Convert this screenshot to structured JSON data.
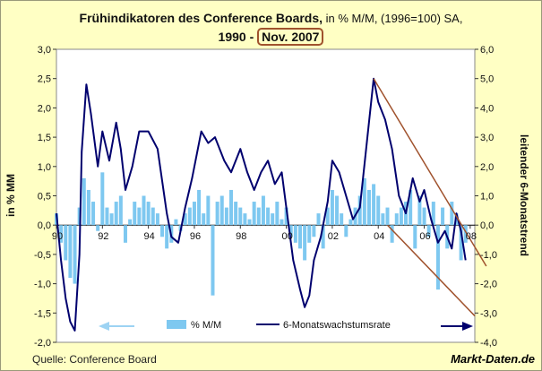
{
  "title": {
    "bold_part": "Frühindikatoren des Conference Boards,",
    "rest_part": " in % M/M, (1996=100) SA,",
    "line2_a": "1990 - ",
    "line2_highlight": "Nov. 2007"
  },
  "source": "Quelle: Conference Board",
  "brand": "Markt-Daten.de",
  "colors": {
    "bars": "#7ec8f0",
    "line": "#00006e",
    "trend": "#a0522d",
    "plot_bg": "#ffffff"
  },
  "chart_data": {
    "type": "bar",
    "xlabel": "",
    "ylabel": "in % MM",
    "y2label": "leitender 6-Monatstrend",
    "x_tick_labels": [
      "90",
      "92",
      "94",
      "96",
      "98",
      "00",
      "02",
      "04",
      "06",
      "08"
    ],
    "x_ticks_year": [
      1990,
      1992,
      1994,
      1996,
      1998,
      2000,
      2002,
      2004,
      2006,
      2008
    ],
    "xlim": [
      1990,
      2008.2
    ],
    "ylim": [
      -2.0,
      3.0
    ],
    "y2lim": [
      -4.0,
      6.0
    ],
    "y_tick_labels": [
      "3,0",
      "2,5",
      "2,0",
      "1,5",
      "1,0",
      "0,5",
      "0,0",
      "-0,5",
      "-1,0",
      "-1,5",
      "-2,0"
    ],
    "y2_tick_labels": [
      "6,0",
      "5,0",
      "4,0",
      "3,0",
      "2,0",
      "1,0",
      "0,0",
      "-1,0",
      "-2,0",
      "-3,0",
      "-4,0"
    ],
    "grid": false,
    "legend_position": "bottom",
    "series": [
      {
        "name": "% M/M",
        "axis": "left",
        "kind": "bar",
        "x": [
          1990.0,
          1990.2,
          1990.4,
          1990.6,
          1990.8,
          1991.0,
          1991.2,
          1991.4,
          1991.6,
          1991.8,
          1992.0,
          1992.2,
          1992.4,
          1992.6,
          1992.8,
          1993.0,
          1993.2,
          1993.4,
          1993.6,
          1993.8,
          1994.0,
          1994.2,
          1994.4,
          1994.6,
          1994.8,
          1995.0,
          1995.2,
          1995.4,
          1995.6,
          1995.8,
          1996.0,
          1996.2,
          1996.4,
          1996.6,
          1996.8,
          1997.0,
          1997.2,
          1997.4,
          1997.6,
          1997.8,
          1998.0,
          1998.2,
          1998.4,
          1998.6,
          1998.8,
          1999.0,
          1999.2,
          1999.4,
          1999.6,
          1999.8,
          2000.0,
          2000.2,
          2000.4,
          2000.6,
          2000.8,
          2001.0,
          2001.2,
          2001.4,
          2001.6,
          2001.8,
          2002.0,
          2002.2,
          2002.4,
          2002.6,
          2002.8,
          2003.0,
          2003.2,
          2003.4,
          2003.6,
          2003.8,
          2004.0,
          2004.2,
          2004.4,
          2004.6,
          2004.8,
          2005.0,
          2005.2,
          2005.4,
          2005.6,
          2005.8,
          2006.0,
          2006.2,
          2006.4,
          2006.6,
          2006.8,
          2007.0,
          2007.2,
          2007.4,
          2007.6,
          2007.8
        ],
        "values": [
          0.2,
          -0.3,
          -0.6,
          -0.9,
          -1.0,
          0.3,
          0.8,
          0.6,
          0.4,
          -0.1,
          0.9,
          0.3,
          0.2,
          0.4,
          0.5,
          -0.3,
          0.1,
          0.4,
          0.3,
          0.5,
          0.4,
          0.3,
          0.2,
          -0.2,
          -0.4,
          -0.3,
          0.1,
          -0.1,
          0.2,
          0.3,
          0.4,
          0.6,
          0.2,
          0.5,
          -1.2,
          0.4,
          0.5,
          0.3,
          0.6,
          0.4,
          0.3,
          0.2,
          0.1,
          0.4,
          0.3,
          0.5,
          0.3,
          0.2,
          0.4,
          0.1,
          0.3,
          -0.2,
          -0.3,
          -0.4,
          -0.6,
          -0.3,
          -0.2,
          0.2,
          -0.4,
          0.3,
          0.6,
          0.5,
          0.2,
          -0.2,
          0.1,
          0.3,
          0.5,
          0.8,
          0.6,
          0.7,
          0.5,
          0.2,
          0.3,
          -0.3,
          0.2,
          0.3,
          0.4,
          0.6,
          -0.4,
          0.5,
          0.3,
          -0.2,
          0.4,
          -1.1,
          0.3,
          -0.4,
          0.4,
          0.2,
          -0.6,
          -0.3
        ]
      },
      {
        "name": "6-Monatswachstumsrate",
        "axis": "right",
        "kind": "line",
        "x": [
          1990.0,
          1990.2,
          1990.4,
          1990.6,
          1990.8,
          1991.0,
          1991.1,
          1991.3,
          1991.5,
          1991.8,
          1992.0,
          1992.3,
          1992.6,
          1992.8,
          1993.0,
          1993.3,
          1993.6,
          1994.0,
          1994.4,
          1994.8,
          1995.0,
          1995.3,
          1995.6,
          1995.9,
          1996.3,
          1996.6,
          1996.9,
          1997.3,
          1997.6,
          1998.0,
          1998.3,
          1998.6,
          1998.9,
          1999.2,
          1999.5,
          1999.8,
          2000.0,
          2000.3,
          2000.6,
          2000.8,
          2001.0,
          2001.2,
          2001.5,
          2001.8,
          2002.0,
          2002.3,
          2002.6,
          2002.9,
          2003.2,
          2003.5,
          2003.8,
          2004.0,
          2004.3,
          2004.6,
          2004.9,
          2005.2,
          2005.5,
          2005.8,
          2006.0,
          2006.3,
          2006.6,
          2006.9,
          2007.2,
          2007.4,
          2007.6,
          2007.8
        ],
        "values": [
          0.4,
          -1.2,
          -2.5,
          -3.3,
          -3.6,
          -1.0,
          2.5,
          4.8,
          3.8,
          2.0,
          3.2,
          2.2,
          3.5,
          2.6,
          1.2,
          2.0,
          3.2,
          3.2,
          2.6,
          0.4,
          -0.4,
          -0.6,
          0.6,
          1.6,
          3.2,
          2.8,
          3.0,
          2.2,
          1.8,
          2.6,
          1.8,
          1.2,
          1.8,
          2.2,
          1.4,
          1.8,
          0.6,
          -1.2,
          -2.2,
          -2.8,
          -2.4,
          -1.2,
          -0.4,
          0.8,
          2.2,
          1.8,
          1.0,
          0.2,
          0.6,
          2.8,
          5.0,
          4.2,
          3.6,
          2.6,
          1.0,
          0.4,
          1.6,
          0.8,
          1.2,
          0.2,
          -0.6,
          -0.2,
          -0.8,
          0.4,
          -0.2,
          -1.2
        ]
      },
      {
        "name": "",
        "axis": "right",
        "kind": "trend",
        "x": [
          2003.8,
          2008.7
        ],
        "values": [
          5.0,
          -1.4
        ]
      },
      {
        "name": "",
        "axis": "right",
        "kind": "trend",
        "x": [
          2004.4,
          2008.2
        ],
        "values": [
          0.0,
          -3.1
        ]
      }
    ]
  }
}
